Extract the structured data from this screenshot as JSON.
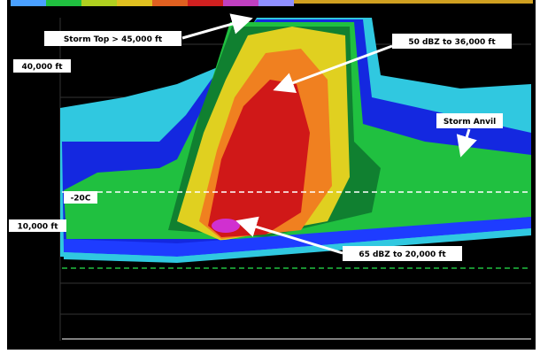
{
  "annotations": [
    {
      "label": "Storm Top > 45,000 ft"
    },
    {
      "label": "50 dBZ to 36,000 ft"
    },
    {
      "label": "40,000 ft"
    },
    {
      "label": "Storm Anvil"
    },
    {
      "label": "-20C"
    },
    {
      "label": "10,000 ft"
    },
    {
      "label": "65 dBZ to 20,000 ft"
    }
  ]
}
